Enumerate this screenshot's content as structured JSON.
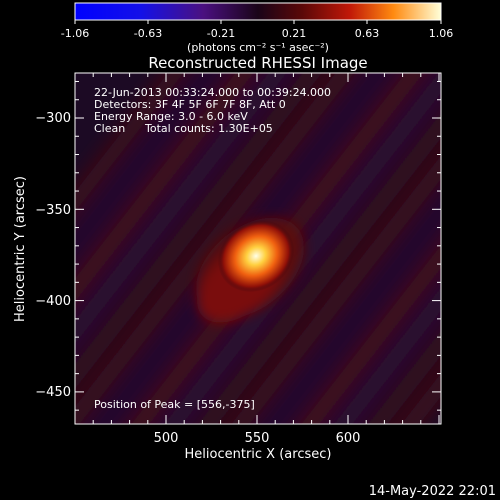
{
  "colorbar": {
    "ticks": [
      "-1.06",
      "-0.63",
      "-0.21",
      "0.21",
      "0.63",
      "1.06"
    ],
    "unit_label": "(photons cm⁻² s⁻¹ asec⁻²)"
  },
  "title": "Reconstructed RHESSI Image",
  "info": {
    "line1": "22-Jun-2013 00:33:24.000 to 00:39:24.000",
    "line2": "Detectors: 3F 4F 5F 6F 7F 8F, Att 0",
    "line3": "Energy Range: 3.0 - 6.0 keV",
    "line4_a": "Clean",
    "line4_b": "Total counts: 1.30E+05"
  },
  "peak_label": "Position of Peak = [556,-375]",
  "axes": {
    "x_label": "Heliocentric X (arcsec)",
    "y_label": "Heliocentric Y (arcsec)",
    "x_ticks": [
      "500",
      "550",
      "600"
    ],
    "y_ticks": [
      "−300",
      "−350",
      "−400",
      "−450"
    ]
  },
  "timestamp": "14-May-2022 22:01",
  "colors": {
    "background": "#000000",
    "foreground": "#ffffff"
  }
}
